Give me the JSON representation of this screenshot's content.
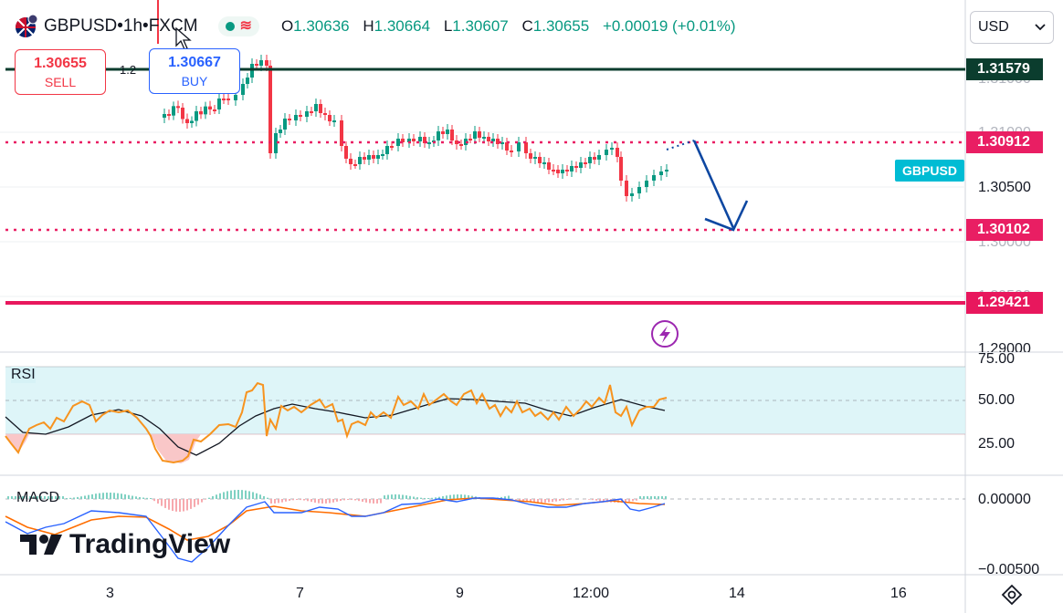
{
  "header": {
    "symbol": "GBPUSD",
    "sep1": " • ",
    "interval": "1h",
    "sep2": " • ",
    "exchange": "FXCM",
    "open_label": "O",
    "open": "1.30636",
    "high_label": "H",
    "high": "1.30664",
    "low_label": "L",
    "low": "1.30607",
    "close_label": "C",
    "close": "1.30655",
    "change": "+0.00019 (+0.01%)",
    "market_status_color": "#089981",
    "flag_icon": "uk-us-flag-icon"
  },
  "trade": {
    "sell_price": "1.30655",
    "sell_label": "SELL",
    "buy_price": "1.30667",
    "buy_label": "BUY",
    "spread": "1.2"
  },
  "currency": {
    "value": "USD"
  },
  "price_tags": {
    "resistance_top": "1.31579",
    "resistance": "1.30912",
    "symbol_tag": "GBPUSD",
    "support": "1.30102",
    "support_bottom": "1.29421"
  },
  "price_axis": {
    "partial_top": "1.31000",
    "p1": "1.30500",
    "partial_mid": "1.30000",
    "partial_low": "1.29500",
    "p2": "1.29000"
  },
  "rsi": {
    "title": "RSI",
    "ticks": [
      "75.00",
      "50.00",
      "25.00"
    ]
  },
  "macd": {
    "title": "MACD",
    "ticks": [
      "0.00000",
      "−0.00500"
    ]
  },
  "time_axis": [
    "3",
    "7",
    "9",
    "12:00",
    "14",
    "16"
  ],
  "brand": {
    "name": "TradingView"
  },
  "colors": {
    "dark_line": "#0b3d2e",
    "resistance": "#e91e63",
    "support_bottom": "#e8175d",
    "up": "#089981",
    "down": "#f23645",
    "rsi_line": "#f7931e",
    "arrow": "#0d47a1"
  },
  "chart_data": {
    "type": "candlestick",
    "price_levels": [
      1.31579,
      1.30912,
      1.30102,
      1.29421
    ],
    "last_close": 1.30655,
    "rsi_bands": [
      25,
      50,
      75
    ]
  }
}
